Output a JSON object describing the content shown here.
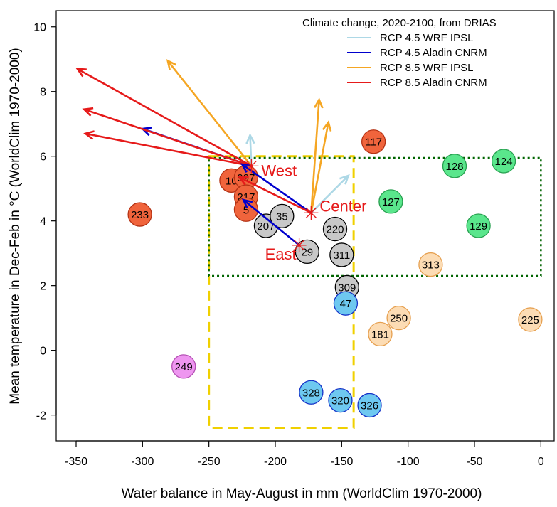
{
  "chart_data": {
    "type": "scatter",
    "title": "",
    "xlabel": "Water balance in May-August in mm (WorldClim 1970-2000)",
    "ylabel": "Mean temperature in Dec-Feb in °C (WorldClim 1970-2000)",
    "xlim": [
      -365,
      10
    ],
    "ylim": [
      -2.8,
      10.5
    ],
    "xticks": [
      -350,
      -300,
      -250,
      -200,
      -150,
      -100,
      -50,
      0
    ],
    "yticks": [
      -2,
      0,
      2,
      4,
      6,
      8,
      10
    ],
    "grid": false,
    "legend": {
      "title": "Climate change, 2020-2100, from DRIAS",
      "position": "top-right",
      "entries": [
        {
          "label": "RCP 4.5 WRF IPSL",
          "color": "#add8e6"
        },
        {
          "label": "RCP 4.5 Aladin CNRM",
          "color": "#0000cd"
        },
        {
          "label": "RCP 8.5 WRF IPSL",
          "color": "#f5a623"
        },
        {
          "label": "RCP 8.5 Aladin CNRM",
          "color": "#e61a1a"
        }
      ]
    },
    "points": [
      {
        "label": "233",
        "x": -302,
        "y": 4.2,
        "fill": "#f0643c",
        "stroke": "#b43214"
      },
      {
        "label": "10",
        "x": -233,
        "y": 5.25,
        "fill": "#f0643c",
        "stroke": "#b43214"
      },
      {
        "label": "997",
        "x": -222,
        "y": 5.35,
        "fill": "#f0643c",
        "stroke": "#b43214"
      },
      {
        "label": "217",
        "x": -222,
        "y": 4.75,
        "fill": "#f0643c",
        "stroke": "#b43214"
      },
      {
        "label": "5",
        "x": -222,
        "y": 4.35,
        "fill": "#f0643c",
        "stroke": "#b43214"
      },
      {
        "label": "117",
        "x": -126,
        "y": 6.45,
        "fill": "#f0643c",
        "stroke": "#b43214"
      },
      {
        "label": "207",
        "x": -207,
        "y": 3.85,
        "fill": "#c8c8c8",
        "stroke": "#000000"
      },
      {
        "label": "35",
        "x": -195,
        "y": 4.15,
        "fill": "#c8c8c8",
        "stroke": "#000000"
      },
      {
        "label": "220",
        "x": -155,
        "y": 3.75,
        "fill": "#c8c8c8",
        "stroke": "#000000"
      },
      {
        "label": "29",
        "x": -176,
        "y": 3.05,
        "fill": "#c8c8c8",
        "stroke": "#000000"
      },
      {
        "label": "311",
        "x": -150,
        "y": 2.95,
        "fill": "#c8c8c8",
        "stroke": "#000000"
      },
      {
        "label": "309",
        "x": -146,
        "y": 1.95,
        "fill": "#c8c8c8",
        "stroke": "#000000"
      },
      {
        "label": "47",
        "x": -147,
        "y": 1.45,
        "fill": "#6ec8f0",
        "stroke": "#1432c8"
      },
      {
        "label": "328",
        "x": -173,
        "y": -1.3,
        "fill": "#6ec8f0",
        "stroke": "#1432c8"
      },
      {
        "label": "320",
        "x": -151,
        "y": -1.55,
        "fill": "#6ec8f0",
        "stroke": "#1432c8"
      },
      {
        "label": "326",
        "x": -129,
        "y": -1.7,
        "fill": "#6ec8f0",
        "stroke": "#1432c8"
      },
      {
        "label": "127",
        "x": -113,
        "y": 4.6,
        "fill": "#5ae68c",
        "stroke": "#28a050"
      },
      {
        "label": "128",
        "x": -65,
        "y": 5.7,
        "fill": "#5ae68c",
        "stroke": "#28a050"
      },
      {
        "label": "124",
        "x": -28,
        "y": 5.85,
        "fill": "#5ae68c",
        "stroke": "#28a050"
      },
      {
        "label": "129",
        "x": -47,
        "y": 3.85,
        "fill": "#5ae68c",
        "stroke": "#28a050"
      },
      {
        "label": "313",
        "x": -83,
        "y": 2.65,
        "fill": "#fcdcb4",
        "stroke": "#e6a050"
      },
      {
        "label": "250",
        "x": -107,
        "y": 1.0,
        "fill": "#fcdcb4",
        "stroke": "#e6a050"
      },
      {
        "label": "181",
        "x": -121,
        "y": 0.5,
        "fill": "#fcdcb4",
        "stroke": "#e6a050"
      },
      {
        "label": "225",
        "x": -8,
        "y": 0.95,
        "fill": "#fcdcb4",
        "stroke": "#e6a050"
      },
      {
        "label": "249",
        "x": -269,
        "y": -0.5,
        "fill": "#ee96f0",
        "stroke": "#b450b4"
      }
    ],
    "sites": [
      {
        "name": "West",
        "x": -218,
        "y": 5.7
      },
      {
        "name": "Center",
        "x": -173,
        "y": 4.25
      },
      {
        "name": "East",
        "x": -182,
        "y": 3.25
      }
    ],
    "arrows": [
      {
        "from": "West",
        "x2": -219,
        "y2": 6.65,
        "color": "#add8e6"
      },
      {
        "from": "West",
        "x2": -300,
        "y2": 6.85,
        "color": "#0000cd"
      },
      {
        "from": "West",
        "x2": -281,
        "y2": 8.95,
        "color": "#f5a623"
      },
      {
        "from": "West",
        "x2": -344,
        "y2": 7.45,
        "color": "#e61a1a"
      },
      {
        "from": "West",
        "x2": -349,
        "y2": 8.7,
        "color": "#e61a1a"
      },
      {
        "from": "West",
        "x2": -343,
        "y2": 6.7,
        "color": "#e61a1a"
      },
      {
        "from": "Center",
        "x2": -145,
        "y2": 5.4,
        "color": "#add8e6"
      },
      {
        "from": "Center",
        "x2": -160,
        "y2": 7.05,
        "color": "#f5a623"
      },
      {
        "from": "Center",
        "x2": -167,
        "y2": 7.75,
        "color": "#f5a623"
      },
      {
        "from": "Center",
        "x2": -225,
        "y2": 5.75,
        "color": "#0000cd"
      },
      {
        "from": "Center",
        "x2": -227,
        "y2": 5.35,
        "color": "#e61a1a"
      },
      {
        "from": "East",
        "x2": -224,
        "y2": 4.65,
        "color": "#0000cd"
      }
    ],
    "regions": [
      {
        "name": "yellow-dashed-box",
        "x": [
          -250,
          -141
        ],
        "y": [
          -2.4,
          6.0
        ],
        "color": "#f0d000",
        "style": "dashed"
      },
      {
        "name": "green-dotted-box",
        "x": [
          -250,
          0
        ],
        "y": [
          2.3,
          5.95
        ],
        "color": "#006400",
        "style": "dotted"
      }
    ],
    "point_radius_mm": 9.5
  }
}
